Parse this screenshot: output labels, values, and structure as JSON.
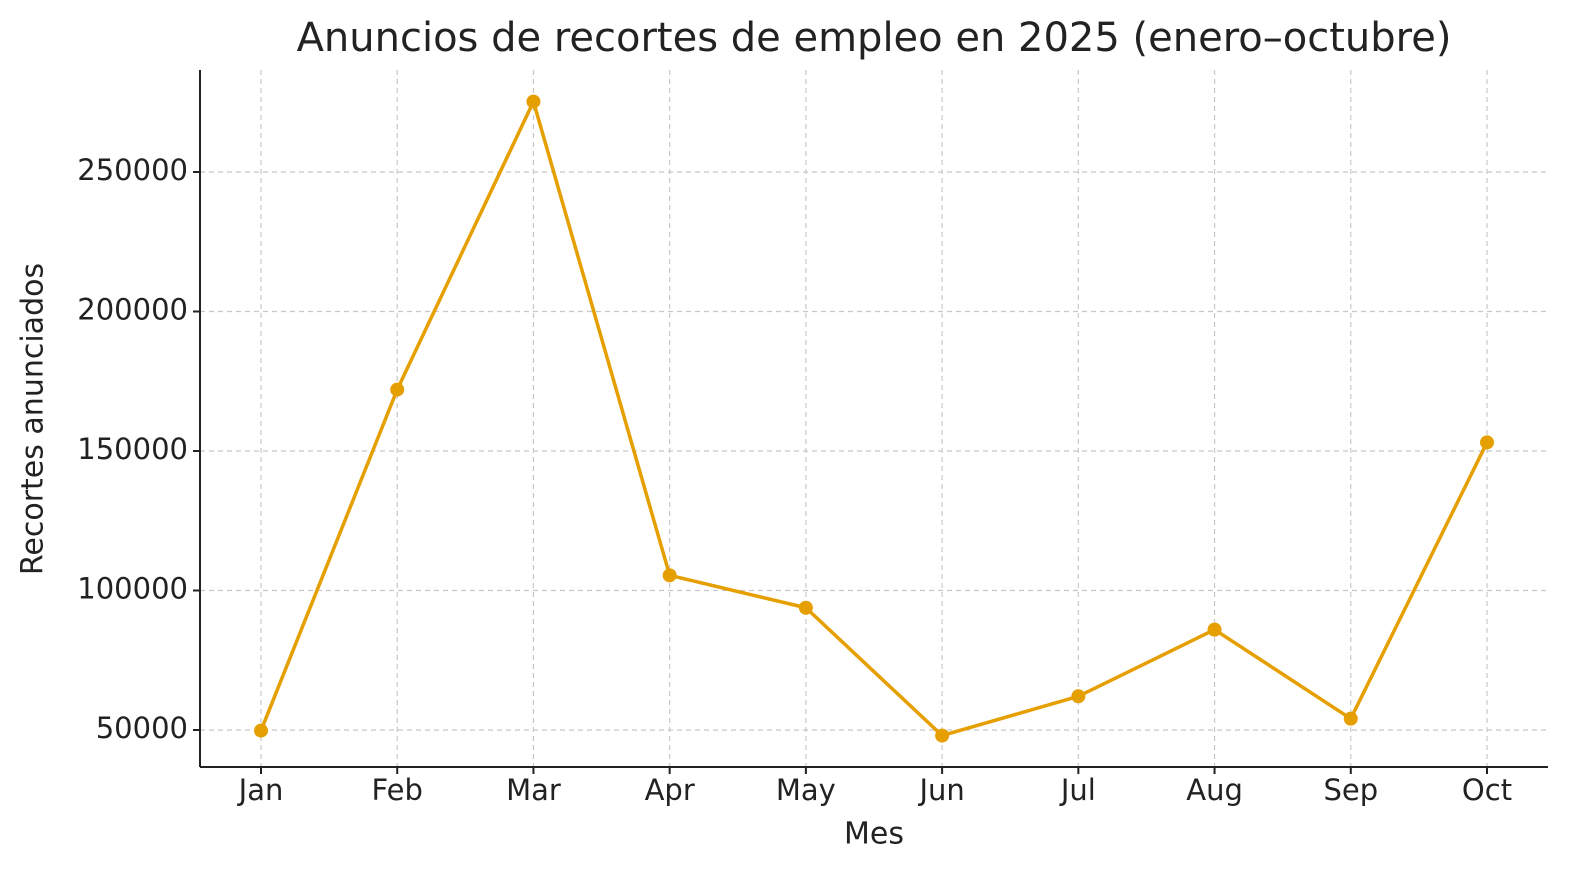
{
  "chart_data": {
    "type": "line",
    "title": "Anuncios de recortes de empleo en 2025 (enero–octubre)",
    "x_label": "Mes",
    "y_label": "Recortes anunciados",
    "categories": [
      "Jan",
      "Feb",
      "Mar",
      "Apr",
      "May",
      "Jun",
      "Jul",
      "Aug",
      "Sep",
      "Oct"
    ],
    "values": [
      49795,
      172017,
      275240,
      105441,
      93816,
      47999,
      62075,
      85979,
      54064,
      153074
    ],
    "color": "#e69f00",
    "ylim": [
      36738,
      286559
    ],
    "yticks": [
      50000,
      100000,
      150000,
      200000,
      250000
    ],
    "grid": true
  }
}
